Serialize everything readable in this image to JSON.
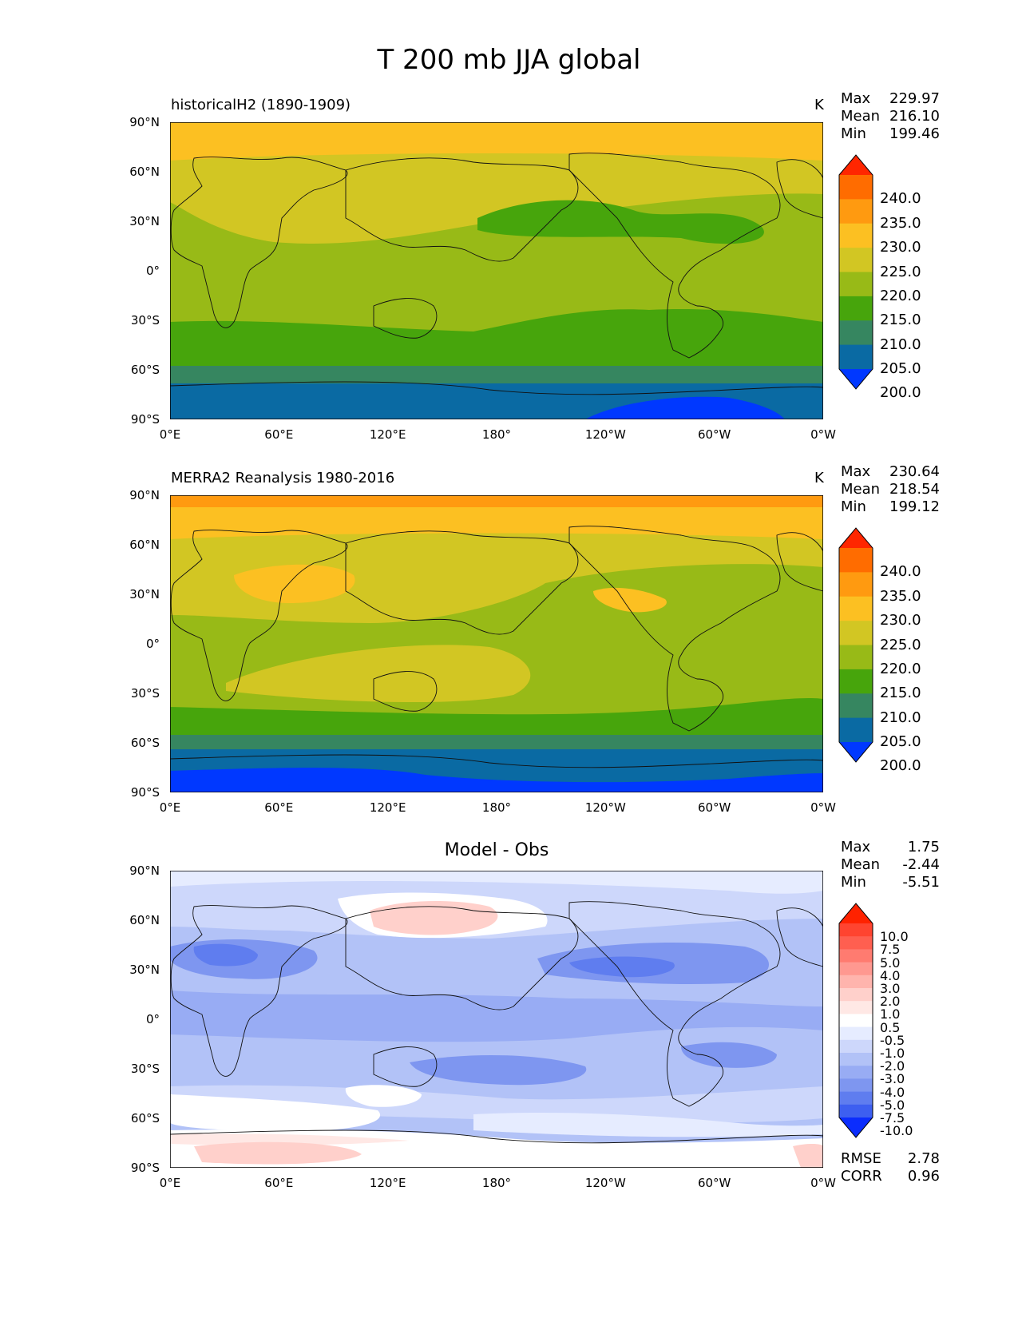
{
  "figure_title": "T 200 mb JJA global",
  "units": "K",
  "lat_ticks": [
    "90°N",
    "60°N",
    "30°N",
    "0°",
    "30°S",
    "60°S",
    "90°S"
  ],
  "lon_ticks": [
    "0°E",
    "60°E",
    "120°E",
    "180°",
    "120°W",
    "60°W",
    "0°W"
  ],
  "panels": [
    {
      "title": "historicalH2 (1890-1909)",
      "stats": [
        {
          "label": "Max",
          "value": "229.97"
        },
        {
          "label": "Mean",
          "value": "216.10"
        },
        {
          "label": "Min",
          "value": "199.46"
        }
      ],
      "colorbar": {
        "labels": [
          "240.0",
          "235.0",
          "230.0",
          "225.0",
          "220.0",
          "215.0",
          "210.0",
          "205.0",
          "200.0"
        ],
        "colors": [
          "#ff2600",
          "#ff6c00",
          "#ff9a10",
          "#fcc022",
          "#d2c623",
          "#98ba17",
          "#47a50c",
          "#368660",
          "#0a6aa3",
          "#0038ff"
        ]
      }
    },
    {
      "title": "MERRA2 Reanalysis 1980-2016",
      "stats": [
        {
          "label": "Max",
          "value": "230.64"
        },
        {
          "label": "Mean",
          "value": "218.54"
        },
        {
          "label": "Min",
          "value": "199.12"
        }
      ],
      "colorbar": {
        "labels": [
          "240.0",
          "235.0",
          "230.0",
          "225.0",
          "220.0",
          "215.0",
          "210.0",
          "205.0",
          "200.0"
        ],
        "colors": [
          "#ff2600",
          "#ff6c00",
          "#ff9a10",
          "#fcc022",
          "#d2c623",
          "#98ba17",
          "#47a50c",
          "#368660",
          "#0a6aa3",
          "#0038ff"
        ]
      }
    },
    {
      "title": "Model - Obs",
      "stats": [
        {
          "label": "Max",
          "value": "1.75"
        },
        {
          "label": "Mean",
          "value": "-2.44"
        },
        {
          "label": "Min",
          "value": "-5.51"
        }
      ],
      "colorbar": {
        "labels": [
          "10.0",
          "7.5",
          "5.0",
          "4.0",
          "3.0",
          "2.0",
          "1.0",
          "0.5",
          "-0.5",
          "-1.0",
          "-2.0",
          "-3.0",
          "-4.0",
          "-5.0",
          "-7.5",
          "-10.0"
        ],
        "colors": [
          "#ff2200",
          "#ff4430",
          "#ff5f50",
          "#ff7b70",
          "#ff9890",
          "#ffb4ad",
          "#ffd0cb",
          "#ffe8e5",
          "#ffffff",
          "#e6ecff",
          "#cdd7fb",
          "#b2c2f7",
          "#98acf4",
          "#7e96f0",
          "#5f7def",
          "#3d5ff0",
          "#0b2dfd"
        ]
      },
      "metrics": [
        {
          "label": "RMSE",
          "value": "2.78"
        },
        {
          "label": "CORR",
          "value": "0.96"
        }
      ]
    }
  ]
}
